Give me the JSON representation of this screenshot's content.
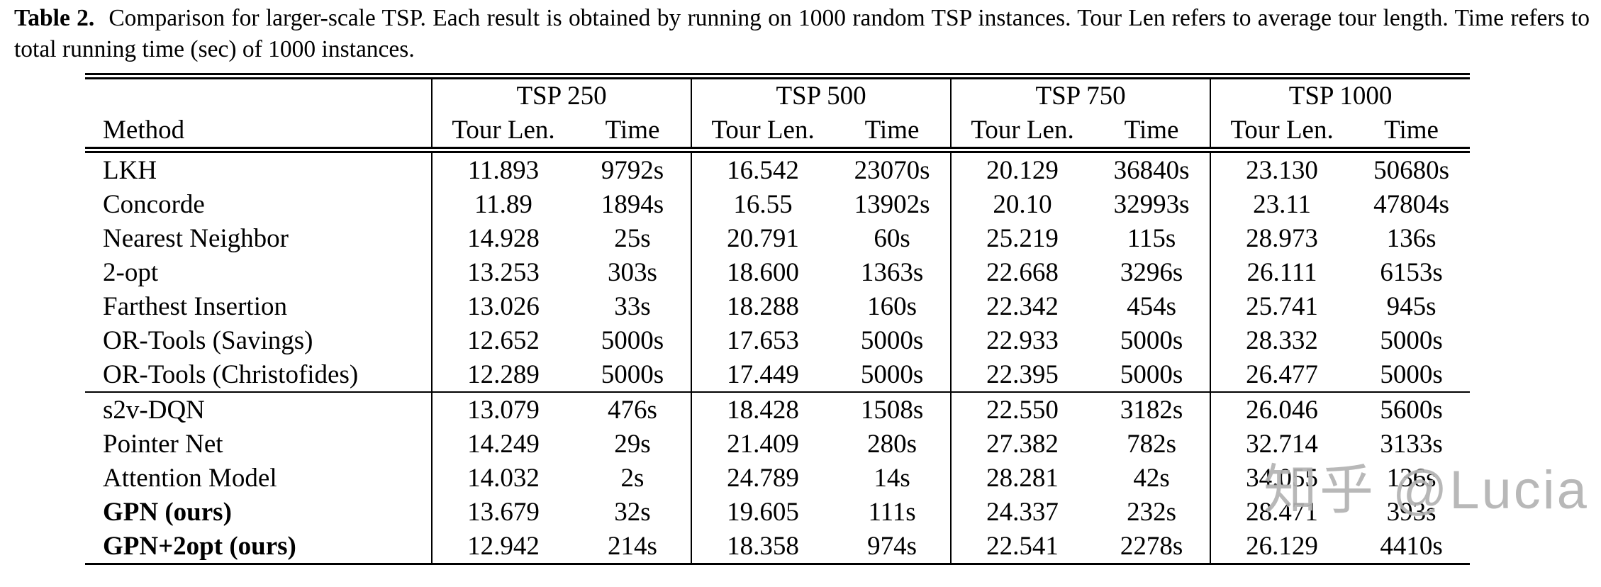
{
  "caption": {
    "label": "Table 2.",
    "text": "Comparison for larger-scale TSP. Each result is obtained by running on 1000 random TSP instances. Tour Len refers to average tour length. Time refers to total running time (sec) of 1000 instances."
  },
  "table": {
    "method_header": "Method",
    "groups": [
      {
        "label": "TSP 250",
        "sub_headers": [
          "Tour Len.",
          "Time"
        ]
      },
      {
        "label": "TSP 500",
        "sub_headers": [
          "Tour Len.",
          "Time"
        ]
      },
      {
        "label": "TSP 750",
        "sub_headers": [
          "Tour Len.",
          "Time"
        ]
      },
      {
        "label": "TSP 1000",
        "sub_headers": [
          "Tour Len.",
          "Time"
        ]
      }
    ],
    "rows": [
      {
        "method": "LKH",
        "bold": false,
        "block": 1,
        "values": [
          "11.893",
          "9792s",
          "16.542",
          "23070s",
          "20.129",
          "36840s",
          "23.130",
          "50680s"
        ]
      },
      {
        "method": "Concorde",
        "bold": false,
        "block": 1,
        "values": [
          "11.89",
          "1894s",
          "16.55",
          "13902s",
          "20.10",
          "32993s",
          "23.11",
          "47804s"
        ]
      },
      {
        "method": "Nearest Neighbor",
        "bold": false,
        "block": 1,
        "values": [
          "14.928",
          "25s",
          "20.791",
          "60s",
          "25.219",
          "115s",
          "28.973",
          "136s"
        ]
      },
      {
        "method": "2-opt",
        "bold": false,
        "block": 1,
        "values": [
          "13.253",
          "303s",
          "18.600",
          "1363s",
          "22.668",
          "3296s",
          "26.111",
          "6153s"
        ]
      },
      {
        "method": "Farthest Insertion",
        "bold": false,
        "block": 1,
        "values": [
          "13.026",
          "33s",
          "18.288",
          "160s",
          "22.342",
          "454s",
          "25.741",
          "945s"
        ]
      },
      {
        "method": "OR-Tools (Savings)",
        "bold": false,
        "block": 1,
        "values": [
          "12.652",
          "5000s",
          "17.653",
          "5000s",
          "22.933",
          "5000s",
          "28.332",
          "5000s"
        ]
      },
      {
        "method": "OR-Tools (Christofides)",
        "bold": false,
        "block": 1,
        "values": [
          "12.289",
          "5000s",
          "17.449",
          "5000s",
          "22.395",
          "5000s",
          "26.477",
          "5000s"
        ]
      },
      {
        "method": "s2v-DQN",
        "bold": false,
        "block": 2,
        "values": [
          "13.079",
          "476s",
          "18.428",
          "1508s",
          "22.550",
          "3182s",
          "26.046",
          "5600s"
        ]
      },
      {
        "method": "Pointer Net",
        "bold": false,
        "block": 2,
        "values": [
          "14.249",
          "29s",
          "21.409",
          "280s",
          "27.382",
          "782s",
          "32.714",
          "3133s"
        ]
      },
      {
        "method": "Attention Model",
        "bold": false,
        "block": 2,
        "values": [
          "14.032",
          "2s",
          "24.789",
          "14s",
          "28.281",
          "42s",
          "34.055",
          "136s"
        ]
      },
      {
        "method": "GPN (ours)",
        "bold": true,
        "block": 2,
        "values": [
          "13.679",
          "32s",
          "19.605",
          "111s",
          "24.337",
          "232s",
          "28.471",
          "393s"
        ]
      },
      {
        "method": "GPN+2opt (ours)",
        "bold": true,
        "block": 2,
        "values": [
          "12.942",
          "214s",
          "18.358",
          "974s",
          "22.541",
          "2278s",
          "26.129",
          "4410s"
        ]
      }
    ]
  },
  "watermark": {
    "text": "知乎 @Lucia",
    "color": "#b3b3b3"
  }
}
